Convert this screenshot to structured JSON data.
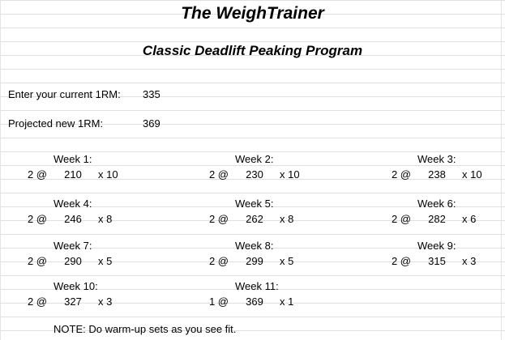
{
  "sheet": {
    "title": "The WeighTrainer",
    "subtitle": "Classic Deadlift Peaking Program",
    "inputs": {
      "current_label": "Enter your current 1RM:",
      "current_value": "335",
      "projected_label": "Projected new 1RM:",
      "projected_value": "369"
    },
    "weeks": [
      {
        "label": "Week 1:",
        "sets": "2 @",
        "weight": "210",
        "reps": "x 10"
      },
      {
        "label": "Week 2:",
        "sets": "2 @",
        "weight": "230",
        "reps": "x 10"
      },
      {
        "label": "Week 3:",
        "sets": "2 @",
        "weight": "238",
        "reps": "x 10"
      },
      {
        "label": "Week 4:",
        "sets": "2 @",
        "weight": "246",
        "reps": "x 8"
      },
      {
        "label": "Week 5:",
        "sets": "2 @",
        "weight": "262",
        "reps": "x 8"
      },
      {
        "label": "Week 6:",
        "sets": "2 @",
        "weight": "282",
        "reps": "x 6"
      },
      {
        "label": "Week 7:",
        "sets": "2 @",
        "weight": "290",
        "reps": "x 5"
      },
      {
        "label": "Week 8:",
        "sets": "2 @",
        "weight": "299",
        "reps": "x 5"
      },
      {
        "label": "Week 9:",
        "sets": "2 @",
        "weight": "315",
        "reps": "x 3"
      },
      {
        "label": "Week 10:",
        "sets": "2 @",
        "weight": "327",
        "reps": "x 3"
      },
      {
        "label": "Week 11:",
        "sets": "1 @",
        "weight": "369",
        "reps": "x 1"
      }
    ],
    "note": "NOTE: Do warm-up sets as you see fit."
  }
}
